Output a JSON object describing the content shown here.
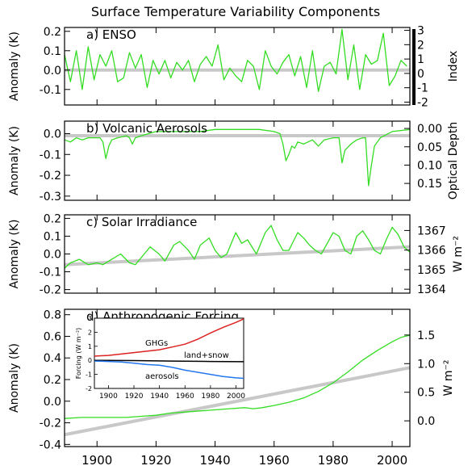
{
  "title": "Surface Temperature Variability Components",
  "x_ticks": [
    "1900",
    "1920",
    "1940",
    "1960",
    "1980",
    "2000"
  ],
  "colors": {
    "series": "#33dd22",
    "trend": "#c8c8c8",
    "ghg": "#dd2222",
    "aerosol": "#2277ee",
    "landsnow": "#000000",
    "axis": "#000000"
  },
  "chart_data": [
    {
      "type": "line",
      "panel_label": "a) ENSO",
      "ylabel": "Anomaly (K)",
      "xlim": [
        1889,
        2006
      ],
      "ylim": [
        -0.18,
        0.22
      ],
      "yticks": [
        0.2,
        0.1,
        0.0,
        -0.1
      ],
      "ytick_labels": [
        "0.2",
        "0.1",
        "0.0",
        "-0.1"
      ],
      "right_axis": {
        "label": "Index",
        "ylim": [
          -2.2,
          3.2
        ],
        "ticks": [
          3,
          2,
          1,
          0,
          -1,
          -2
        ],
        "tick_labels": [
          "3",
          "2",
          "1",
          "0",
          "-1",
          "-2"
        ]
      },
      "reference_line": [
        [
          1889,
          0.0
        ],
        [
          2006,
          0.0
        ]
      ],
      "series": [
        {
          "x": [
            1889,
            1891,
            1893,
            1895,
            1897,
            1899,
            1901,
            1903,
            1905,
            1907,
            1909,
            1911,
            1913,
            1915,
            1917,
            1919,
            1921,
            1923,
            1925,
            1927,
            1929,
            1931,
            1933,
            1935,
            1937,
            1939,
            1941,
            1943,
            1945,
            1947,
            1949,
            1951,
            1953,
            1955,
            1957,
            1959,
            1961,
            1963,
            1965,
            1967,
            1969,
            1971,
            1973,
            1975,
            1977,
            1979,
            1981,
            1983,
            1985,
            1987,
            1989,
            1991,
            1993,
            1995,
            1997,
            1999,
            2001,
            2003,
            2005
          ],
          "y": [
            0.08,
            -0.06,
            0.1,
            -0.1,
            0.12,
            -0.05,
            0.08,
            0.02,
            0.1,
            -0.06,
            -0.04,
            0.09,
            0.01,
            0.08,
            -0.09,
            0.05,
            -0.02,
            0.05,
            -0.04,
            0.04,
            0.0,
            0.05,
            -0.06,
            0.03,
            0.07,
            0.02,
            0.13,
            -0.05,
            0.01,
            -0.03,
            -0.06,
            0.05,
            0.02,
            -0.1,
            0.1,
            0.02,
            -0.02,
            0.04,
            0.08,
            -0.03,
            0.07,
            -0.09,
            0.1,
            -0.11,
            0.02,
            0.04,
            -0.02,
            0.21,
            -0.05,
            0.13,
            -0.1,
            0.08,
            0.03,
            0.05,
            0.19,
            -0.08,
            -0.03,
            0.05,
            0.02
          ]
        }
      ]
    },
    {
      "type": "line",
      "panel_label": "b) Volcanic Aerosols",
      "ylabel": "Anomaly (K)",
      "xlim": [
        1889,
        2006
      ],
      "ylim": [
        -0.32,
        0.06
      ],
      "yticks": [
        0.0,
        -0.1,
        -0.2,
        -0.3
      ],
      "ytick_labels": [
        "0.0",
        "-0.1",
        "-0.2",
        "-0.3"
      ],
      "right_axis": {
        "label": "Optical Depth",
        "ylim": [
          0.196,
          -0.02
        ],
        "ticks": [
          0.0,
          0.05,
          0.1,
          0.15
        ],
        "tick_labels": [
          "0.00",
          "0.05",
          "0.10",
          "0.15"
        ]
      },
      "reference_line": [
        [
          1889,
          -0.01
        ],
        [
          2006,
          -0.01
        ]
      ],
      "series": [
        {
          "x": [
            1889,
            1891,
            1893,
            1895,
            1897,
            1899,
            1901,
            1902,
            1903,
            1904,
            1905,
            1907,
            1910,
            1911,
            1912,
            1913,
            1915,
            1920,
            1925,
            1930,
            1935,
            1940,
            1945,
            1950,
            1955,
            1960,
            1962,
            1963,
            1964,
            1965,
            1966,
            1967,
            1968,
            1970,
            1973,
            1975,
            1977,
            1980,
            1982,
            1983,
            1984,
            1986,
            1988,
            1990,
            1991,
            1992,
            1993,
            1994,
            1996,
            2000,
            2006
          ],
          "y": [
            -0.03,
            -0.04,
            -0.02,
            -0.03,
            -0.02,
            -0.02,
            -0.02,
            -0.04,
            -0.12,
            -0.06,
            -0.03,
            -0.02,
            -0.01,
            -0.02,
            -0.05,
            -0.02,
            -0.01,
            0.01,
            0.01,
            0.01,
            0.01,
            0.02,
            0.02,
            0.02,
            0.02,
            0.01,
            0.0,
            -0.05,
            -0.13,
            -0.1,
            -0.06,
            -0.07,
            -0.04,
            -0.05,
            -0.03,
            -0.06,
            -0.03,
            -0.02,
            -0.02,
            -0.14,
            -0.08,
            -0.05,
            -0.03,
            -0.02,
            -0.02,
            -0.25,
            -0.15,
            -0.06,
            -0.02,
            0.01,
            0.02
          ]
        }
      ]
    },
    {
      "type": "line",
      "panel_label": "c) Solar Irradiance",
      "ylabel": "Anomaly (K)",
      "xlim": [
        1889,
        2006
      ],
      "ylim": [
        -0.22,
        0.22
      ],
      "yticks": [
        0.2,
        0.1,
        0.0,
        -0.1,
        -0.2
      ],
      "ytick_labels": [
        "0.2",
        "0.1",
        "0.0",
        "-0.1",
        "-0.2"
      ],
      "right_axis": {
        "label": "W m⁻²",
        "ylim": [
          1363.8,
          1367.8
        ],
        "ticks": [
          1367,
          1366,
          1365,
          1364
        ],
        "tick_labels": [
          "1367",
          "1366",
          "1365",
          "1364"
        ]
      },
      "reference_line": [
        [
          1889,
          -0.06
        ],
        [
          2006,
          0.04
        ]
      ],
      "series": [
        {
          "x": [
            1889,
            1891,
            1894,
            1897,
            1900,
            1902,
            1905,
            1908,
            1911,
            1913,
            1916,
            1918,
            1921,
            1923,
            1926,
            1928,
            1931,
            1933,
            1935,
            1938,
            1940,
            1942,
            1944,
            1947,
            1949,
            1951,
            1954,
            1957,
            1959,
            1961,
            1963,
            1965,
            1968,
            1970,
            1972,
            1974,
            1976,
            1978,
            1980,
            1982,
            1984,
            1986,
            1988,
            1990,
            1992,
            1994,
            1996,
            1998,
            2000,
            2002,
            2004,
            2006
          ],
          "y": [
            -0.08,
            -0.05,
            -0.03,
            -0.06,
            -0.05,
            -0.06,
            -0.03,
            0.0,
            -0.05,
            -0.06,
            0.0,
            0.04,
            0.0,
            -0.04,
            0.05,
            0.07,
            0.02,
            -0.03,
            0.05,
            0.09,
            0.02,
            -0.02,
            0.0,
            0.12,
            0.06,
            0.08,
            0.0,
            0.12,
            0.16,
            0.08,
            0.02,
            0.02,
            0.12,
            0.09,
            0.05,
            0.02,
            0.0,
            0.06,
            0.12,
            0.1,
            0.02,
            0.0,
            0.1,
            0.13,
            0.08,
            0.02,
            0.0,
            0.08,
            0.15,
            0.11,
            0.04,
            0.01
          ]
        }
      ]
    },
    {
      "type": "line",
      "panel_label": "d) Anthropogenic Forcing",
      "ylabel": "Anomaly (K)",
      "xlim": [
        1889,
        2006
      ],
      "ylim": [
        -0.42,
        0.85
      ],
      "yticks": [
        0.8,
        0.6,
        0.4,
        0.2,
        0.0,
        -0.2,
        -0.4
      ],
      "ytick_labels": [
        "0.8",
        "0.6",
        "0.4",
        "0.2",
        "0.0",
        "-0.2",
        "-0.4"
      ],
      "right_axis": {
        "label": "W m⁻²",
        "ylim": [
          -0.45,
          1.95
        ],
        "ticks": [
          1.5,
          1.0,
          0.5,
          0.0
        ],
        "tick_labels": [
          "1.5",
          "1.0",
          "0.5",
          "0.0"
        ]
      },
      "reference_line": [
        [
          1889,
          -0.31
        ],
        [
          2006,
          0.31
        ]
      ],
      "series": [
        {
          "x": [
            1889,
            1895,
            1900,
            1905,
            1910,
            1915,
            1920,
            1925,
            1930,
            1935,
            1940,
            1945,
            1950,
            1953,
            1956,
            1960,
            1965,
            1970,
            1975,
            1980,
            1985,
            1990,
            1995,
            2000,
            2003,
            2006
          ],
          "y": [
            -0.16,
            -0.15,
            -0.15,
            -0.15,
            -0.15,
            -0.14,
            -0.13,
            -0.11,
            -0.1,
            -0.09,
            -0.08,
            -0.07,
            -0.06,
            -0.07,
            -0.06,
            -0.04,
            -0.01,
            0.03,
            0.09,
            0.17,
            0.27,
            0.38,
            0.47,
            0.55,
            0.59,
            0.61
          ]
        }
      ],
      "inset": {
        "xlim": [
          1889,
          2006
        ],
        "ylim": [
          -2.0,
          3.0
        ],
        "yticks": [
          3,
          2,
          1,
          0,
          -1,
          -2
        ],
        "ytick_labels": [
          "3",
          "2",
          "1",
          "0",
          "-1",
          "-2"
        ],
        "x_ticks": [
          "1900",
          "1920",
          "1940",
          "1960",
          "1980",
          "2000"
        ],
        "ylabel": "Forcing (W m⁻²)",
        "series": [
          {
            "name": "GHGs",
            "x": [
              1889,
              1900,
              1910,
              1920,
              1930,
              1940,
              1950,
              1960,
              1970,
              1980,
              1990,
              2000,
              2006
            ],
            "y": [
              0.3,
              0.35,
              0.45,
              0.55,
              0.65,
              0.75,
              0.95,
              1.15,
              1.5,
              1.95,
              2.35,
              2.7,
              2.95
            ]
          },
          {
            "name": "land+snow",
            "x": [
              1889,
              1920,
              1950,
              1980,
              2006
            ],
            "y": [
              0.0,
              -0.02,
              -0.05,
              -0.08,
              -0.1
            ]
          },
          {
            "name": "aerosols",
            "x": [
              1889,
              1900,
              1910,
              1920,
              1930,
              1940,
              1950,
              1960,
              1970,
              1980,
              1990,
              2000,
              2006
            ],
            "y": [
              -0.05,
              -0.08,
              -0.12,
              -0.2,
              -0.3,
              -0.35,
              -0.5,
              -0.7,
              -0.85,
              -1.0,
              -1.15,
              -1.25,
              -1.28
            ]
          }
        ]
      }
    }
  ]
}
